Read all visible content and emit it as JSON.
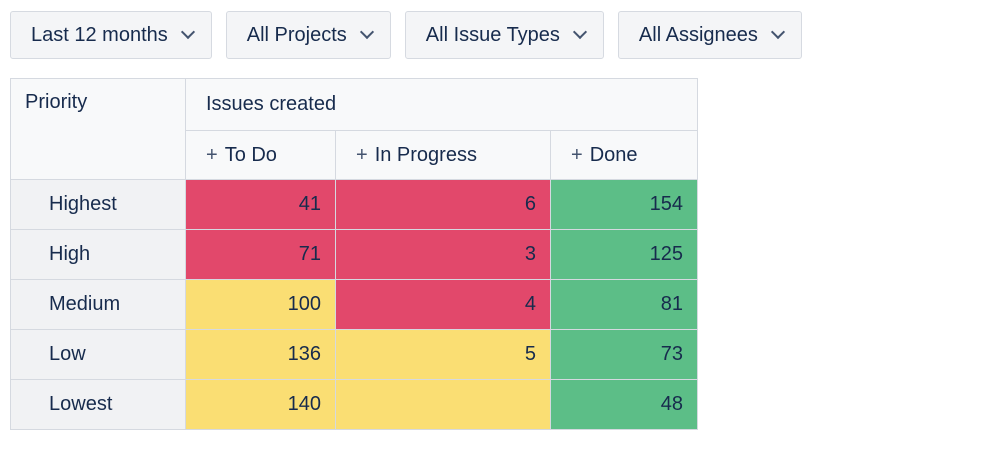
{
  "colors": {
    "red": "#E2486B",
    "yellow": "#FADE73",
    "green": "#5CBE87",
    "text": "#172B4D"
  },
  "icons": {
    "plus": "+",
    "chevron": "chevron-down"
  },
  "filters": [
    {
      "label": "Last 12 months"
    },
    {
      "label": "All Projects"
    },
    {
      "label": "All Issue Types"
    },
    {
      "label": "All Assignees"
    }
  ],
  "table": {
    "row_header": "Priority",
    "group_header": "Issues created",
    "columns": [
      {
        "label": "To Do"
      },
      {
        "label": "In Progress"
      },
      {
        "label": "Done"
      }
    ],
    "rows": [
      {
        "label": "Highest",
        "cells": [
          {
            "value": "41",
            "color": "red"
          },
          {
            "value": "6",
            "color": "red"
          },
          {
            "value": "154",
            "color": "green"
          }
        ]
      },
      {
        "label": "High",
        "cells": [
          {
            "value": "71",
            "color": "red"
          },
          {
            "value": "3",
            "color": "red"
          },
          {
            "value": "125",
            "color": "green"
          }
        ]
      },
      {
        "label": "Medium",
        "cells": [
          {
            "value": "100",
            "color": "yellow"
          },
          {
            "value": "4",
            "color": "red"
          },
          {
            "value": "81",
            "color": "green"
          }
        ]
      },
      {
        "label": "Low",
        "cells": [
          {
            "value": "136",
            "color": "yellow"
          },
          {
            "value": "5",
            "color": "yellow"
          },
          {
            "value": "73",
            "color": "green"
          }
        ]
      },
      {
        "label": "Lowest",
        "cells": [
          {
            "value": "140",
            "color": "yellow"
          },
          {
            "value": "",
            "color": "yellow"
          },
          {
            "value": "48",
            "color": "green"
          }
        ]
      }
    ]
  },
  "chart_data": {
    "type": "heatmap",
    "title": "Issues created",
    "rows": [
      "Highest",
      "High",
      "Medium",
      "Low",
      "Lowest"
    ],
    "columns": [
      "To Do",
      "In Progress",
      "Done"
    ],
    "values": [
      [
        41,
        6,
        154
      ],
      [
        71,
        3,
        125
      ],
      [
        100,
        4,
        81
      ],
      [
        136,
        5,
        73
      ],
      [
        140,
        null,
        48
      ]
    ],
    "cell_colors": [
      [
        "red",
        "red",
        "green"
      ],
      [
        "red",
        "red",
        "green"
      ],
      [
        "yellow",
        "red",
        "green"
      ],
      [
        "yellow",
        "yellow",
        "green"
      ],
      [
        "yellow",
        "yellow",
        "green"
      ]
    ],
    "legend_position": "none",
    "grid": true
  }
}
